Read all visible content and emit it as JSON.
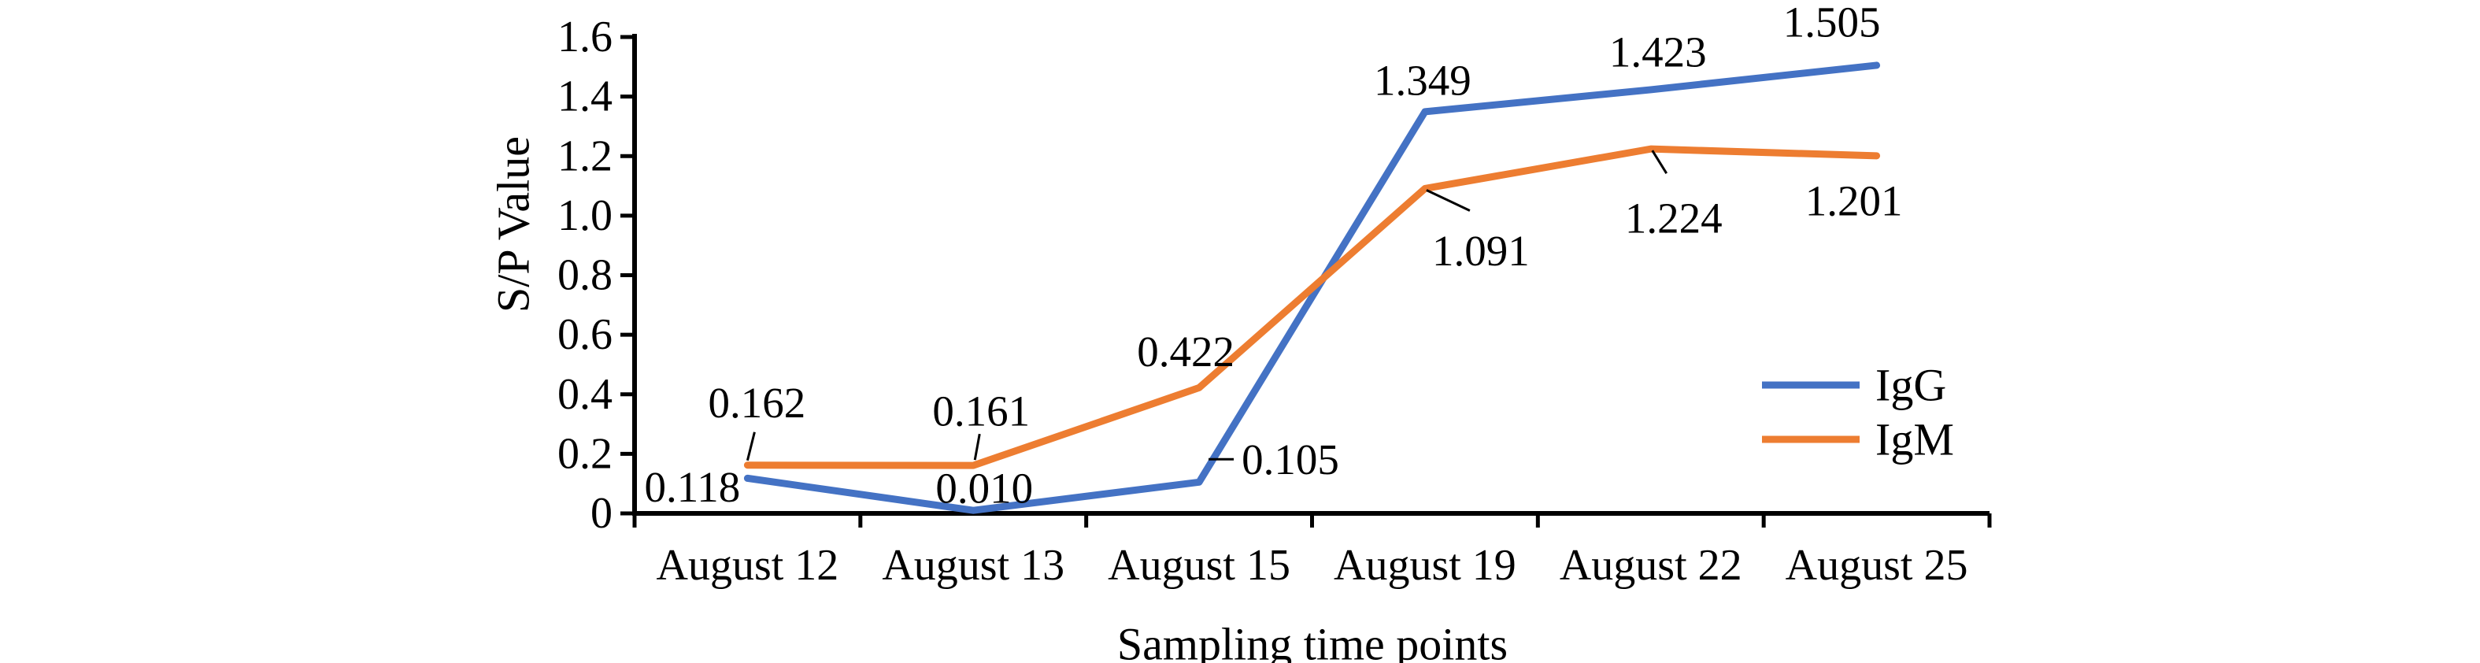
{
  "figure": {
    "background": "#ffffff",
    "text_color": "#000000",
    "axis_color": "#000000"
  },
  "chart_data": {
    "type": "line",
    "title": "",
    "xlabel": "Sampling time points",
    "ylabel": "S/P Value",
    "categories": [
      "August 12",
      "August 13",
      "August 15",
      "August 19",
      "August 22",
      "August 25"
    ],
    "series": [
      {
        "name": "IgG",
        "color": "#4472C4",
        "values": [
          0.118,
          0.01,
          0.105,
          1.349,
          1.423,
          1.505
        ]
      },
      {
        "name": "IgM",
        "color": "#ED7D31",
        "values": [
          0.162,
          0.161,
          0.422,
          1.091,
          1.224,
          1.201
        ]
      }
    ],
    "data_labels": [
      "0.118",
      "0.010",
      "0.105",
      "1.349",
      "1.423",
      "1.505",
      "0.162",
      "0.161",
      "0.422",
      "1.091",
      "1.224",
      "1.201"
    ],
    "ylim": [
      0,
      1.6
    ],
    "ytick_step": 0.2,
    "ytick_labels": [
      "0",
      "0.2",
      "0.4",
      "0.6",
      "0.8",
      "1.0",
      "1.2",
      "1.4",
      "1.6"
    ],
    "grid": false,
    "legend_position": "middle-right",
    "legend_entries": [
      "IgG",
      "IgM"
    ]
  }
}
